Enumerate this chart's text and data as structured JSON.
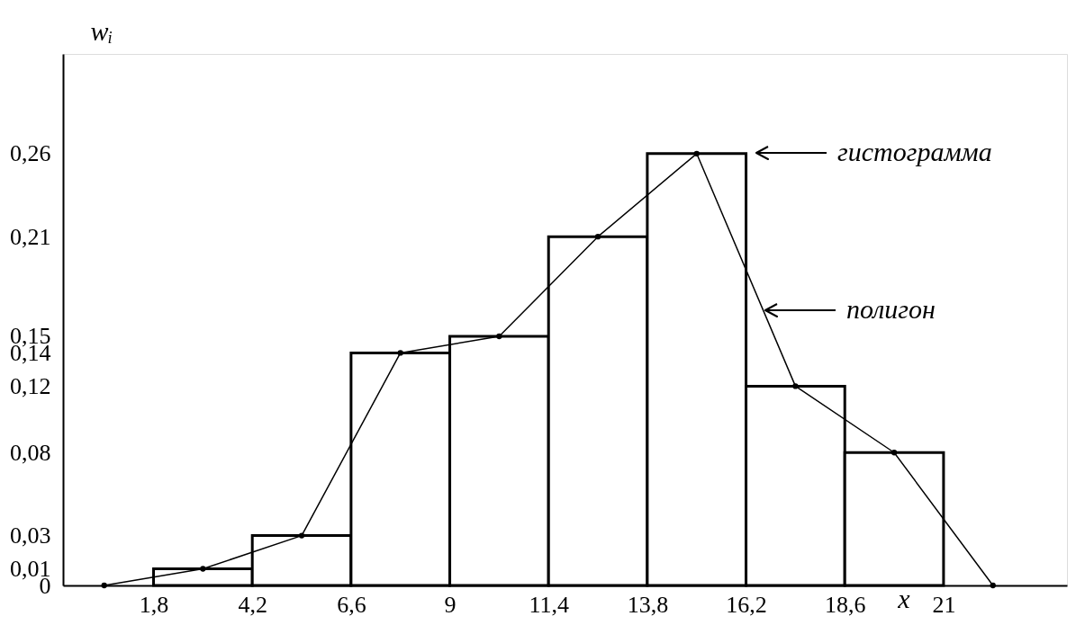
{
  "chart_data": {
    "type": "histogram",
    "xlabel": "x",
    "ylabel": "wᵢ",
    "bins": [
      1.8,
      4.2,
      6.6,
      9,
      11.4,
      13.8,
      16.2,
      18.6,
      21
    ],
    "values": [
      0.01,
      0.03,
      0.14,
      0.15,
      0.21,
      0.26,
      0.12,
      0.08
    ],
    "color": "#ffffff",
    "series": [
      {
        "type": "line",
        "color": "#000000",
        "x": [
          0.6,
          3,
          5.4,
          7.8,
          10.2,
          12.6,
          15,
          17.4,
          19.8,
          22.2
        ],
        "values": [
          0,
          0.01,
          0.03,
          0.14,
          0.15,
          0.21,
          0.26,
          0.12,
          0.08,
          0
        ]
      }
    ],
    "marker": "circle",
    "xlim": [
      -0.4,
      24
    ],
    "ylim": [
      0,
      0.32
    ],
    "xticks": [
      {
        "value": 1.8,
        "label": "1,8"
      },
      {
        "value": 4.2,
        "label": "4,2"
      },
      {
        "value": 6.6,
        "label": "6,6"
      },
      {
        "value": 9,
        "label": "9"
      },
      {
        "value": 11.4,
        "label": "11,4"
      },
      {
        "value": 13.8,
        "label": "13,8"
      },
      {
        "value": 16.2,
        "label": "16,2"
      },
      {
        "value": 18.6,
        "label": "18,6"
      },
      {
        "value": 21,
        "label": "21"
      }
    ],
    "yticks": [
      {
        "value": 0,
        "label": "0"
      },
      {
        "value": 0.01,
        "label": "0,01"
      },
      {
        "value": 0.03,
        "label": "0,03"
      },
      {
        "value": 0.08,
        "label": "0,08"
      },
      {
        "value": 0.12,
        "label": "0,12"
      },
      {
        "value": 0.14,
        "label": "0,14"
      },
      {
        "value": 0.15,
        "label": "0,15"
      },
      {
        "value": 0.21,
        "label": "0,21"
      },
      {
        "value": 0.26,
        "label": "0,26"
      }
    ],
    "grid": false,
    "annotations": [
      "гистограмма",
      "полигон"
    ]
  }
}
